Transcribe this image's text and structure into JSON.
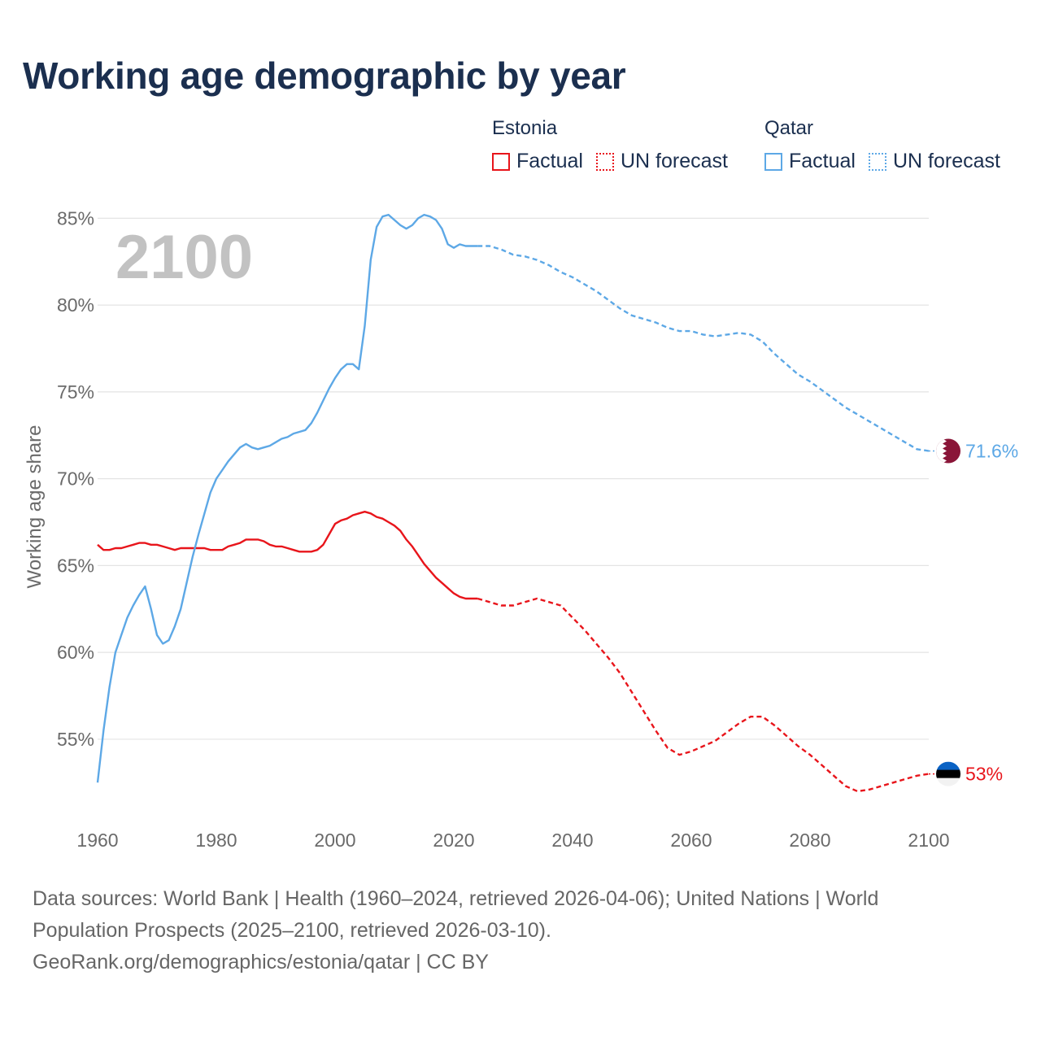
{
  "title": "Working age demographic by year",
  "legend": {
    "factual_label": "Factual",
    "forecast_label": "UN forecast",
    "groups": [
      {
        "name": "Estonia",
        "color": "#e8151b"
      },
      {
        "name": "Qatar",
        "color": "#5da8e6"
      }
    ]
  },
  "source": {
    "line1": "Data sources: World Bank | Health (1960–2024, retrieved 2026-04-06); United Nations | World Population Prospects (2025–2100, retrieved 2026-03-10).",
    "line2": "GeoRank.org/demographics/estonia/qatar | CC BY"
  },
  "chart_data": {
    "type": "line",
    "title": "Working age demographic by year",
    "current_year_label": "2100",
    "xlabel": "",
    "ylabel": "Working age share",
    "xlim": [
      1960,
      2100
    ],
    "ylim": [
      50.5,
      86
    ],
    "x_ticks": [
      1960,
      1980,
      2000,
      2020,
      2040,
      2060,
      2080,
      2100
    ],
    "y_ticks": [
      55,
      60,
      65,
      70,
      75,
      80,
      85
    ],
    "y_tick_suffix": "%",
    "grid": true,
    "forecast_start": 2024,
    "series": [
      {
        "name": "Estonia",
        "color": "#e8151b",
        "flag_colors": [
          "#0a62c4",
          "#000000",
          "#f2f2f2"
        ],
        "end_label": "53%",
        "points": [
          [
            1960,
            66.2
          ],
          [
            1961,
            65.9
          ],
          [
            1962,
            65.9
          ],
          [
            1963,
            66.0
          ],
          [
            1964,
            66.0
          ],
          [
            1965,
            66.1
          ],
          [
            1966,
            66.2
          ],
          [
            1967,
            66.3
          ],
          [
            1968,
            66.3
          ],
          [
            1969,
            66.2
          ],
          [
            1970,
            66.2
          ],
          [
            1971,
            66.1
          ],
          [
            1972,
            66.0
          ],
          [
            1973,
            65.9
          ],
          [
            1974,
            66.0
          ],
          [
            1975,
            66.0
          ],
          [
            1976,
            66.0
          ],
          [
            1977,
            66.0
          ],
          [
            1978,
            66.0
          ],
          [
            1979,
            65.9
          ],
          [
            1980,
            65.9
          ],
          [
            1981,
            65.9
          ],
          [
            1982,
            66.1
          ],
          [
            1983,
            66.2
          ],
          [
            1984,
            66.3
          ],
          [
            1985,
            66.5
          ],
          [
            1986,
            66.5
          ],
          [
            1987,
            66.5
          ],
          [
            1988,
            66.4
          ],
          [
            1989,
            66.2
          ],
          [
            1990,
            66.1
          ],
          [
            1991,
            66.1
          ],
          [
            1992,
            66.0
          ],
          [
            1993,
            65.9
          ],
          [
            1994,
            65.8
          ],
          [
            1995,
            65.8
          ],
          [
            1996,
            65.8
          ],
          [
            1997,
            65.9
          ],
          [
            1998,
            66.2
          ],
          [
            1999,
            66.8
          ],
          [
            2000,
            67.4
          ],
          [
            2001,
            67.6
          ],
          [
            2002,
            67.7
          ],
          [
            2003,
            67.9
          ],
          [
            2004,
            68.0
          ],
          [
            2005,
            68.1
          ],
          [
            2006,
            68.0
          ],
          [
            2007,
            67.8
          ],
          [
            2008,
            67.7
          ],
          [
            2009,
            67.5
          ],
          [
            2010,
            67.3
          ],
          [
            2011,
            67.0
          ],
          [
            2012,
            66.5
          ],
          [
            2013,
            66.1
          ],
          [
            2014,
            65.6
          ],
          [
            2015,
            65.1
          ],
          [
            2016,
            64.7
          ],
          [
            2017,
            64.3
          ],
          [
            2018,
            64.0
          ],
          [
            2019,
            63.7
          ],
          [
            2020,
            63.4
          ],
          [
            2021,
            63.2
          ],
          [
            2022,
            63.1
          ],
          [
            2023,
            63.1
          ],
          [
            2024,
            63.1
          ],
          [
            2026,
            62.9
          ],
          [
            2028,
            62.7
          ],
          [
            2030,
            62.7
          ],
          [
            2032,
            62.9
          ],
          [
            2034,
            63.1
          ],
          [
            2036,
            62.9
          ],
          [
            2038,
            62.7
          ],
          [
            2040,
            62.0
          ],
          [
            2042,
            61.3
          ],
          [
            2044,
            60.5
          ],
          [
            2046,
            59.7
          ],
          [
            2048,
            58.8
          ],
          [
            2050,
            57.7
          ],
          [
            2052,
            56.6
          ],
          [
            2054,
            55.5
          ],
          [
            2056,
            54.5
          ],
          [
            2058,
            54.1
          ],
          [
            2060,
            54.3
          ],
          [
            2062,
            54.6
          ],
          [
            2064,
            54.9
          ],
          [
            2066,
            55.4
          ],
          [
            2068,
            55.9
          ],
          [
            2070,
            56.3
          ],
          [
            2072,
            56.3
          ],
          [
            2074,
            55.8
          ],
          [
            2076,
            55.2
          ],
          [
            2078,
            54.6
          ],
          [
            2080,
            54.1
          ],
          [
            2082,
            53.5
          ],
          [
            2084,
            52.9
          ],
          [
            2086,
            52.3
          ],
          [
            2088,
            52.0
          ],
          [
            2090,
            52.1
          ],
          [
            2092,
            52.3
          ],
          [
            2094,
            52.5
          ],
          [
            2096,
            52.7
          ],
          [
            2098,
            52.9
          ],
          [
            2100,
            53.0
          ]
        ]
      },
      {
        "name": "Qatar",
        "color": "#5da8e6",
        "flag_colors": [
          "#8a1538",
          "#ffffff"
        ],
        "end_label": "71.6%",
        "points": [
          [
            1960,
            52.5
          ],
          [
            1961,
            55.5
          ],
          [
            1962,
            58.0
          ],
          [
            1963,
            60.0
          ],
          [
            1964,
            61.0
          ],
          [
            1965,
            62.0
          ],
          [
            1966,
            62.7
          ],
          [
            1967,
            63.3
          ],
          [
            1968,
            63.8
          ],
          [
            1969,
            62.5
          ],
          [
            1970,
            61.0
          ],
          [
            1971,
            60.5
          ],
          [
            1972,
            60.7
          ],
          [
            1973,
            61.5
          ],
          [
            1974,
            62.5
          ],
          [
            1975,
            64.0
          ],
          [
            1976,
            65.5
          ],
          [
            1977,
            66.8
          ],
          [
            1978,
            68.0
          ],
          [
            1979,
            69.2
          ],
          [
            1980,
            70.0
          ],
          [
            1981,
            70.5
          ],
          [
            1982,
            71.0
          ],
          [
            1983,
            71.4
          ],
          [
            1984,
            71.8
          ],
          [
            1985,
            72.0
          ],
          [
            1986,
            71.8
          ],
          [
            1987,
            71.7
          ],
          [
            1988,
            71.8
          ],
          [
            1989,
            71.9
          ],
          [
            1990,
            72.1
          ],
          [
            1991,
            72.3
          ],
          [
            1992,
            72.4
          ],
          [
            1993,
            72.6
          ],
          [
            1994,
            72.7
          ],
          [
            1995,
            72.8
          ],
          [
            1996,
            73.2
          ],
          [
            1997,
            73.8
          ],
          [
            1998,
            74.5
          ],
          [
            1999,
            75.2
          ],
          [
            2000,
            75.8
          ],
          [
            2001,
            76.3
          ],
          [
            2002,
            76.6
          ],
          [
            2003,
            76.6
          ],
          [
            2004,
            76.3
          ],
          [
            2005,
            78.8
          ],
          [
            2006,
            82.6
          ],
          [
            2007,
            84.5
          ],
          [
            2008,
            85.1
          ],
          [
            2009,
            85.2
          ],
          [
            2010,
            84.9
          ],
          [
            2011,
            84.6
          ],
          [
            2012,
            84.4
          ],
          [
            2013,
            84.6
          ],
          [
            2014,
            85.0
          ],
          [
            2015,
            85.2
          ],
          [
            2016,
            85.1
          ],
          [
            2017,
            84.9
          ],
          [
            2018,
            84.4
          ],
          [
            2019,
            83.5
          ],
          [
            2020,
            83.3
          ],
          [
            2021,
            83.5
          ],
          [
            2022,
            83.4
          ],
          [
            2023,
            83.4
          ],
          [
            2024,
            83.4
          ],
          [
            2026,
            83.4
          ],
          [
            2028,
            83.2
          ],
          [
            2030,
            82.9
          ],
          [
            2032,
            82.8
          ],
          [
            2034,
            82.6
          ],
          [
            2036,
            82.3
          ],
          [
            2038,
            81.9
          ],
          [
            2040,
            81.6
          ],
          [
            2042,
            81.2
          ],
          [
            2044,
            80.8
          ],
          [
            2046,
            80.3
          ],
          [
            2048,
            79.8
          ],
          [
            2050,
            79.4
          ],
          [
            2052,
            79.2
          ],
          [
            2054,
            79.0
          ],
          [
            2056,
            78.7
          ],
          [
            2058,
            78.5
          ],
          [
            2060,
            78.5
          ],
          [
            2062,
            78.3
          ],
          [
            2064,
            78.2
          ],
          [
            2066,
            78.3
          ],
          [
            2068,
            78.4
          ],
          [
            2070,
            78.3
          ],
          [
            2072,
            77.9
          ],
          [
            2074,
            77.2
          ],
          [
            2076,
            76.6
          ],
          [
            2078,
            76.0
          ],
          [
            2080,
            75.6
          ],
          [
            2082,
            75.1
          ],
          [
            2084,
            74.6
          ],
          [
            2086,
            74.1
          ],
          [
            2088,
            73.7
          ],
          [
            2090,
            73.3
          ],
          [
            2092,
            72.9
          ],
          [
            2094,
            72.5
          ],
          [
            2096,
            72.1
          ],
          [
            2098,
            71.7
          ],
          [
            2100,
            71.6
          ]
        ]
      }
    ]
  }
}
